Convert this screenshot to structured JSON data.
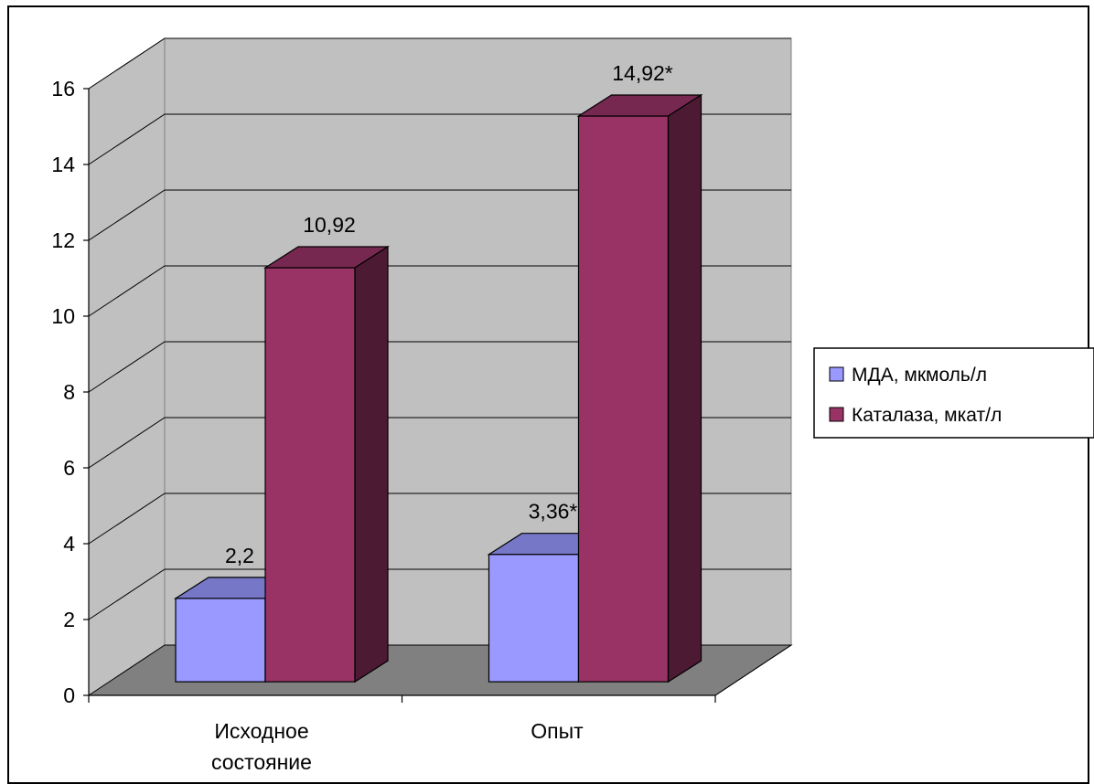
{
  "chart_data": {
    "type": "bar",
    "categories": [
      "Исходное состояние",
      "Опыт"
    ],
    "category_lines": [
      [
        "Исходное",
        "состояние"
      ],
      [
        "Опыт"
      ]
    ],
    "series": [
      {
        "name": "МДА, мкмоль/л",
        "values": [
          2.2,
          3.36
        ],
        "labels": [
          "2,2",
          "3,36*"
        ],
        "color": "#9999ff"
      },
      {
        "name": "Каталаза, мкат/л",
        "values": [
          10.92,
          14.92
        ],
        "labels": [
          "10,92",
          "14,92*"
        ],
        "color": "#993366"
      }
    ],
    "ylim": [
      0,
      16
    ],
    "yticks": [
      0,
      2,
      4,
      6,
      8,
      10,
      12,
      14,
      16
    ],
    "grid": true,
    "legend": "right",
    "title": "",
    "xlabel": "",
    "ylabel": "",
    "colors": {
      "wall": "#c0c0c0",
      "floor": "#808080",
      "grid": "#000000"
    }
  }
}
